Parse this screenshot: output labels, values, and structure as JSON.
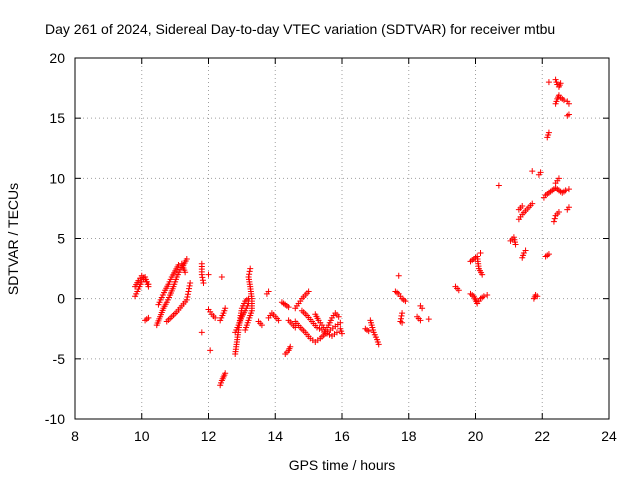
{
  "colors": {
    "series": "#ff0000",
    "grid": "#a0a0a0",
    "axis": "#000000"
  },
  "chart_data": {
    "type": "scatter",
    "title": "Day 261 of 2024, Sidereal Day-to-day VTEC variation (SDTVAR) for receiver mtbu",
    "xlabel": "GPS time / hours",
    "ylabel": "SDTVAR / TECUs",
    "xlim": [
      8,
      24
    ],
    "ylim": [
      -10,
      20
    ],
    "xticks": [
      8,
      10,
      12,
      14,
      16,
      18,
      20,
      22,
      24
    ],
    "yticks": [
      -10,
      -5,
      0,
      5,
      10,
      15,
      20
    ],
    "grid": true,
    "marker": "plus",
    "series": [
      {
        "name": "SDTVAR",
        "segments": [
          [
            [
              9.8,
              1.0
            ],
            [
              9.9,
              1.5
            ],
            [
              10.0,
              1.9
            ],
            [
              10.1,
              1.6
            ],
            [
              10.2,
              1.2
            ]
          ],
          [
            [
              9.8,
              0.2
            ],
            [
              9.9,
              0.8
            ],
            [
              10.0,
              1.4
            ],
            [
              10.1,
              1.8
            ],
            [
              10.2,
              1.0
            ]
          ],
          [
            [
              10.1,
              -1.8
            ],
            [
              10.2,
              -1.6
            ]
          ],
          [
            [
              10.45,
              -2.2
            ],
            [
              10.55,
              -1.5
            ],
            [
              10.65,
              -0.8
            ],
            [
              10.75,
              -0.3
            ],
            [
              10.85,
              0.3
            ],
            [
              10.95,
              1.0
            ],
            [
              11.05,
              1.8
            ],
            [
              11.15,
              2.4
            ],
            [
              11.25,
              2.8
            ],
            [
              11.35,
              3.3
            ]
          ],
          [
            [
              10.5,
              -0.5
            ],
            [
              10.6,
              0.1
            ],
            [
              10.7,
              0.7
            ],
            [
              10.8,
              1.2
            ],
            [
              10.9,
              1.8
            ],
            [
              11.0,
              2.3
            ],
            [
              11.1,
              2.8
            ],
            [
              11.2,
              2.9
            ],
            [
              11.3,
              2.2
            ]
          ],
          [
            [
              10.75,
              -1.9
            ],
            [
              10.9,
              -1.5
            ],
            [
              11.05,
              -1.1
            ],
            [
              11.2,
              -0.6
            ],
            [
              11.35,
              -0.1
            ],
            [
              11.4,
              0.6
            ],
            [
              11.45,
              1.3
            ]
          ],
          [
            [
              11.8,
              2.9
            ],
            [
              11.8,
              2.0
            ],
            [
              11.85,
              1.3
            ]
          ],
          [
            [
              11.8,
              -2.8
            ]
          ],
          [
            [
              12.0,
              2.0
            ]
          ],
          [
            [
              12.05,
              -4.3
            ]
          ],
          [
            [
              12.0,
              -0.9
            ],
            [
              12.1,
              -1.3
            ],
            [
              12.2,
              -1.6
            ]
          ],
          [
            [
              12.35,
              -7.2
            ],
            [
              12.4,
              -6.8
            ],
            [
              12.45,
              -6.5
            ],
            [
              12.5,
              -6.2
            ]
          ],
          [
            [
              12.4,
              1.8
            ]
          ],
          [
            [
              12.35,
              -1.8
            ],
            [
              12.45,
              -1.2
            ],
            [
              12.5,
              -0.8
            ]
          ],
          [
            [
              12.8,
              -4.6
            ],
            [
              12.85,
              -3.6
            ],
            [
              12.9,
              -2.6
            ],
            [
              12.95,
              -1.6
            ],
            [
              13.0,
              -0.8
            ],
            [
              13.1,
              -0.2
            ],
            [
              13.2,
              0.0
            ]
          ],
          [
            [
              12.8,
              -2.8
            ],
            [
              12.9,
              -2.2
            ],
            [
              13.0,
              -1.5
            ],
            [
              13.1,
              -1.0
            ],
            [
              13.2,
              -0.4
            ]
          ],
          [
            [
              13.1,
              -2.6
            ],
            [
              13.2,
              -1.8
            ],
            [
              13.3,
              -1.0
            ],
            [
              13.3,
              0.0
            ],
            [
              13.25,
              1.0
            ],
            [
              13.2,
              1.8
            ],
            [
              13.25,
              2.5
            ]
          ],
          [
            [
              13.5,
              -1.9
            ],
            [
              13.6,
              -2.2
            ]
          ],
          [
            [
              13.75,
              0.4
            ],
            [
              13.8,
              0.6
            ]
          ],
          [
            [
              13.8,
              -1.6
            ],
            [
              13.9,
              -1.2
            ],
            [
              14.0,
              -1.5
            ],
            [
              14.1,
              -1.8
            ]
          ],
          [
            [
              14.2,
              -0.3
            ],
            [
              14.3,
              -0.5
            ],
            [
              14.4,
              -0.7
            ]
          ],
          [
            [
              14.3,
              -4.6
            ],
            [
              14.4,
              -4.3
            ],
            [
              14.45,
              -4.0
            ]
          ],
          [
            [
              14.4,
              -1.8
            ],
            [
              14.5,
              -2.1
            ],
            [
              14.6,
              -2.4
            ]
          ],
          [
            [
              14.6,
              -0.8
            ],
            [
              14.7,
              -0.4
            ],
            [
              14.8,
              0.0
            ],
            [
              14.9,
              0.3
            ],
            [
              15.0,
              0.6
            ]
          ],
          [
            [
              14.6,
              -1.9
            ],
            [
              14.75,
              -2.4
            ],
            [
              14.9,
              -2.8
            ],
            [
              15.05,
              -3.3
            ],
            [
              15.2,
              -3.6
            ],
            [
              15.35,
              -3.3
            ],
            [
              15.5,
              -2.9
            ],
            [
              15.65,
              -2.6
            ],
            [
              15.8,
              -2.3
            ],
            [
              15.95,
              -2.0
            ]
          ],
          [
            [
              14.8,
              -1.0
            ],
            [
              14.95,
              -1.4
            ],
            [
              15.1,
              -1.9
            ],
            [
              15.25,
              -2.4
            ],
            [
              15.4,
              -2.6
            ],
            [
              15.55,
              -2.9
            ],
            [
              15.7,
              -3.1
            ],
            [
              15.85,
              -2.8
            ]
          ],
          [
            [
              15.2,
              -1.3
            ],
            [
              15.3,
              -1.8
            ],
            [
              15.4,
              -2.2
            ],
            [
              15.5,
              -2.6
            ],
            [
              15.6,
              -2.2
            ],
            [
              15.7,
              -1.6
            ],
            [
              15.8,
              -1.2
            ],
            [
              15.9,
              -1.5
            ]
          ],
          [
            [
              15.95,
              -2.5
            ],
            [
              16.0,
              -2.9
            ]
          ],
          [
            [
              16.7,
              -2.5
            ],
            [
              16.8,
              -2.7
            ]
          ],
          [
            [
              16.85,
              -1.8
            ],
            [
              16.95,
              -2.8
            ],
            [
              17.05,
              -3.4
            ],
            [
              17.1,
              -3.8
            ]
          ],
          [
            [
              17.7,
              1.9
            ]
          ],
          [
            [
              17.6,
              0.6
            ],
            [
              17.7,
              0.4
            ],
            [
              17.8,
              0.0
            ],
            [
              17.9,
              -0.2
            ]
          ],
          [
            [
              17.8,
              -1.2
            ],
            [
              17.75,
              -1.9
            ],
            [
              17.8,
              -2.0
            ]
          ],
          [
            [
              18.25,
              -1.5
            ],
            [
              18.35,
              -1.8
            ]
          ],
          [
            [
              18.35,
              -0.6
            ],
            [
              18.4,
              -0.8
            ]
          ],
          [
            [
              18.6,
              -1.7
            ]
          ],
          [
            [
              19.4,
              1.0
            ],
            [
              19.5,
              0.7
            ]
          ],
          [
            [
              19.85,
              0.4
            ],
            [
              19.95,
              0.2
            ],
            [
              20.0,
              -0.1
            ],
            [
              20.05,
              -0.4
            ],
            [
              20.1,
              -0.2
            ],
            [
              20.15,
              0.0
            ],
            [
              20.25,
              0.2
            ],
            [
              20.35,
              0.3
            ]
          ],
          [
            [
              19.85,
              3.1
            ],
            [
              19.95,
              3.3
            ],
            [
              20.05,
              3.5
            ],
            [
              20.1,
              2.5
            ],
            [
              20.2,
              2.0
            ]
          ],
          [
            [
              20.15,
              3.8
            ]
          ],
          [
            [
              20.7,
              9.4
            ]
          ],
          [
            [
              21.05,
              4.8
            ],
            [
              21.15,
              5.1
            ],
            [
              21.2,
              4.5
            ]
          ],
          [
            [
              21.3,
              6.6
            ],
            [
              21.4,
              7.0
            ],
            [
              21.5,
              7.3
            ],
            [
              21.6,
              7.6
            ],
            [
              21.7,
              7.9
            ]
          ],
          [
            [
              21.4,
              3.4
            ],
            [
              21.45,
              3.8
            ],
            [
              21.5,
              4.0
            ]
          ],
          [
            [
              21.3,
              7.4
            ],
            [
              21.4,
              7.7
            ]
          ],
          [
            [
              21.7,
              10.6
            ]
          ],
          [
            [
              21.75,
              0.0
            ],
            [
              21.8,
              0.3
            ],
            [
              21.85,
              0.2
            ]
          ],
          [
            [
              21.9,
              10.3
            ],
            [
              21.95,
              10.5
            ]
          ],
          [
            [
              22.05,
              8.4
            ],
            [
              22.1,
              8.6
            ],
            [
              22.2,
              8.8
            ],
            [
              22.3,
              9.0
            ],
            [
              22.4,
              9.2
            ],
            [
              22.5,
              9.0
            ],
            [
              22.6,
              8.8
            ],
            [
              22.7,
              9.0
            ],
            [
              22.8,
              9.1
            ]
          ],
          [
            [
              22.1,
              3.5
            ],
            [
              22.2,
              3.7
            ]
          ],
          [
            [
              22.15,
              13.4
            ],
            [
              22.2,
              13.8
            ]
          ],
          [
            [
              22.2,
              18.0
            ]
          ],
          [
            [
              22.4,
              18.2
            ],
            [
              22.45,
              17.8
            ],
            [
              22.5,
              17.6
            ],
            [
              22.55,
              17.9
            ]
          ],
          [
            [
              22.4,
              16.2
            ],
            [
              22.45,
              16.6
            ],
            [
              22.5,
              16.9
            ],
            [
              22.55,
              16.7
            ],
            [
              22.65,
              16.5
            ],
            [
              22.75,
              16.4
            ],
            [
              22.8,
              16.2
            ]
          ],
          [
            [
              22.35,
              6.4
            ],
            [
              22.4,
              6.9
            ],
            [
              22.5,
              7.2
            ]
          ],
          [
            [
              22.4,
              9.6
            ],
            [
              22.5,
              10.0
            ]
          ],
          [
            [
              22.75,
              7.4
            ],
            [
              22.8,
              7.6
            ]
          ],
          [
            [
              22.75,
              15.2
            ],
            [
              22.8,
              15.3
            ]
          ]
        ]
      }
    ]
  }
}
